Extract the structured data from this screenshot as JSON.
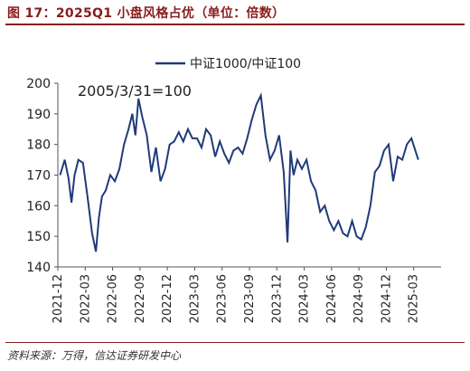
{
  "figure_title": "图 17：2025Q1 小盘风格占优（单位：倍数）",
  "source": "资料来源：万得，信达证券研发中心",
  "colors": {
    "accent": "#8a1c1c",
    "line": "#1f3a7a",
    "axis": "#555555",
    "text": "#222222"
  },
  "chart_data": {
    "type": "line",
    "title": "",
    "xlabel": "",
    "ylabel": "",
    "annotation": "2005/3/31=100",
    "legend_position": "top-center",
    "grid": false,
    "ylim": [
      140,
      200
    ],
    "yticks": [
      140,
      150,
      160,
      170,
      180,
      190,
      200
    ],
    "xticks": [
      "2021-12",
      "2022-03",
      "2022-06",
      "2022-09",
      "2022-12",
      "2023-03",
      "2023-06",
      "2023-09",
      "2023-12",
      "2024-03",
      "2024-06",
      "2024-09",
      "2024-12",
      "2025-03"
    ],
    "series": [
      {
        "name": "中证1000/中证100",
        "x": [
          "2021-12",
          "2021-12",
          "2022-01",
          "2022-01",
          "2022-01",
          "2022-02",
          "2022-02",
          "2022-03",
          "2022-03",
          "2022-04",
          "2022-04",
          "2022-04",
          "2022-05",
          "2022-05",
          "2022-06",
          "2022-06",
          "2022-07",
          "2022-07",
          "2022-08",
          "2022-08",
          "2022-08",
          "2022-09",
          "2022-09",
          "2022-10",
          "2022-10",
          "2022-11",
          "2022-11",
          "2022-12",
          "2022-12",
          "2023-01",
          "2023-01",
          "2023-02",
          "2023-02",
          "2023-03",
          "2023-03",
          "2023-04",
          "2023-04",
          "2023-05",
          "2023-05",
          "2023-06",
          "2023-06",
          "2023-07",
          "2023-07",
          "2023-08",
          "2023-08",
          "2023-09",
          "2023-09",
          "2023-10",
          "2023-10",
          "2023-11",
          "2023-11",
          "2023-12",
          "2023-12",
          "2024-01",
          "2024-01",
          "2024-01",
          "2024-02",
          "2024-02",
          "2024-03",
          "2024-03",
          "2024-04",
          "2024-04",
          "2024-05",
          "2024-05",
          "2024-06",
          "2024-06",
          "2024-07",
          "2024-07",
          "2024-08",
          "2024-08",
          "2024-09",
          "2024-09",
          "2024-10",
          "2024-10",
          "2024-11",
          "2024-11",
          "2024-12",
          "2024-12",
          "2025-01",
          "2025-01",
          "2025-02",
          "2025-02",
          "2025-03"
        ],
        "values": [
          170,
          175,
          169,
          161,
          170,
          175,
          174,
          163,
          151,
          145,
          156,
          163,
          165,
          170,
          168,
          172,
          180,
          185,
          190,
          183,
          195,
          189,
          183,
          171,
          179,
          168,
          172,
          180,
          181,
          184,
          181,
          185,
          182,
          182,
          179,
          185,
          183,
          176,
          181,
          177,
          174,
          178,
          179,
          177,
          182,
          188,
          193,
          196,
          183,
          175,
          178,
          183,
          171,
          148,
          178,
          170,
          175,
          172,
          175,
          168,
          165,
          158,
          160,
          155,
          152,
          155,
          151,
          150,
          155,
          150,
          149,
          153,
          160,
          171,
          173,
          178,
          180,
          168,
          176,
          175,
          180,
          182,
          175
        ]
      }
    ]
  }
}
